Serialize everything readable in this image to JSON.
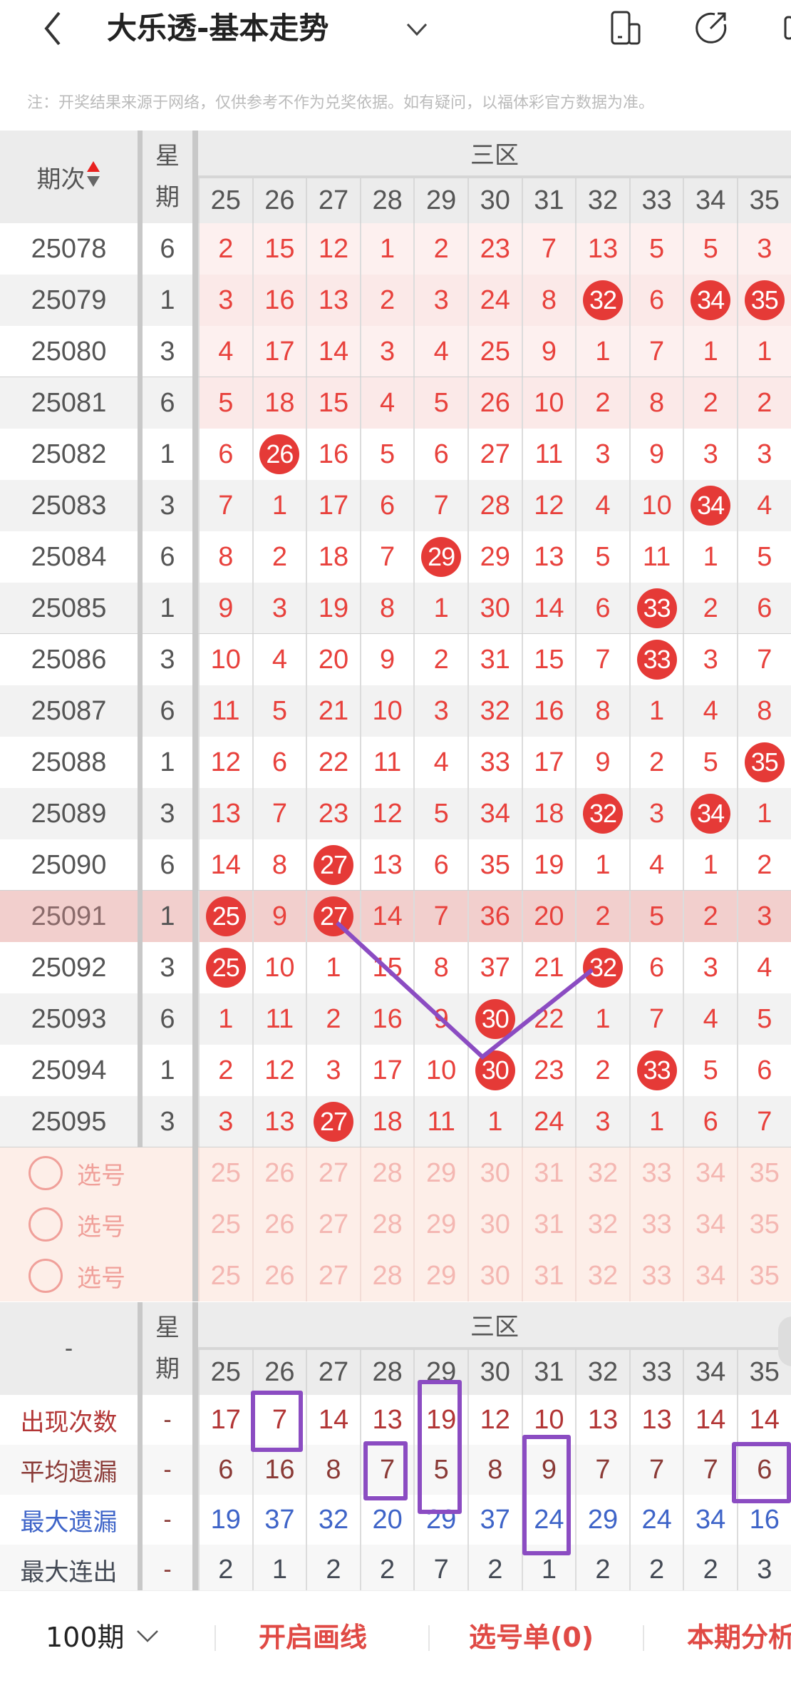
{
  "header": {
    "title": "大乐透-基本走势",
    "back_icon": "chevron-left-icon",
    "dropdown_icon": "chevron-down-icon",
    "icons": [
      "device-icon",
      "share-icon"
    ]
  },
  "notice": "注：开奖结果来源于网络，仅供参考不作为兑奖依据。如有疑问，以福体彩官方数据为准。",
  "table": {
    "issue_header": "期次",
    "weekday_header": "星期",
    "zone_header": "三区",
    "columns": [
      "25",
      "26",
      "27",
      "28",
      "29",
      "30",
      "31",
      "32",
      "33",
      "34",
      "35"
    ],
    "colors": {
      "text": "#e8413c",
      "ball": "#e53a37",
      "issue": "#555555"
    },
    "rows": [
      {
        "issue": "25078",
        "weekday": "6",
        "values": [
          2,
          15,
          12,
          1,
          2,
          23,
          7,
          13,
          5,
          5,
          3
        ],
        "hits": []
      },
      {
        "issue": "25079",
        "weekday": "1",
        "values": [
          3,
          16,
          13,
          2,
          3,
          24,
          8,
          32,
          6,
          34,
          35
        ],
        "hits": [
          7,
          9,
          10
        ]
      },
      {
        "issue": "25080",
        "weekday": "3",
        "values": [
          4,
          17,
          14,
          3,
          4,
          25,
          9,
          1,
          7,
          1,
          1
        ],
        "hits": []
      },
      {
        "issue": "25081",
        "weekday": "6",
        "values": [
          5,
          18,
          15,
          4,
          5,
          26,
          10,
          2,
          8,
          2,
          2
        ],
        "hits": []
      },
      {
        "issue": "25082",
        "weekday": "1",
        "values": [
          6,
          26,
          16,
          5,
          6,
          27,
          11,
          3,
          9,
          3,
          3
        ],
        "hits": [
          1
        ]
      },
      {
        "issue": "25083",
        "weekday": "3",
        "values": [
          7,
          1,
          17,
          6,
          7,
          28,
          12,
          4,
          10,
          34,
          4
        ],
        "hits": [
          9
        ]
      },
      {
        "issue": "25084",
        "weekday": "6",
        "values": [
          8,
          2,
          18,
          7,
          29,
          29,
          13,
          5,
          11,
          1,
          5
        ],
        "hits": [
          4
        ]
      },
      {
        "issue": "25085",
        "weekday": "1",
        "values": [
          9,
          3,
          19,
          8,
          1,
          30,
          14,
          6,
          33,
          2,
          6
        ],
        "hits": [
          8
        ]
      },
      {
        "issue": "25086",
        "weekday": "3",
        "values": [
          10,
          4,
          20,
          9,
          2,
          31,
          15,
          7,
          33,
          3,
          7
        ],
        "hits": [
          8
        ]
      },
      {
        "issue": "25087",
        "weekday": "6",
        "values": [
          11,
          5,
          21,
          10,
          3,
          32,
          16,
          8,
          1,
          4,
          8
        ],
        "hits": []
      },
      {
        "issue": "25088",
        "weekday": "1",
        "values": [
          12,
          6,
          22,
          11,
          4,
          33,
          17,
          9,
          2,
          5,
          35
        ],
        "hits": [
          10
        ]
      },
      {
        "issue": "25089",
        "weekday": "3",
        "values": [
          13,
          7,
          23,
          12,
          5,
          34,
          18,
          32,
          3,
          34,
          1
        ],
        "hits": [
          7,
          9
        ]
      },
      {
        "issue": "25090",
        "weekday": "6",
        "values": [
          14,
          8,
          27,
          13,
          6,
          35,
          19,
          1,
          4,
          1,
          2
        ],
        "hits": [
          2
        ]
      },
      {
        "issue": "25091",
        "weekday": "1",
        "values": [
          25,
          9,
          27,
          14,
          7,
          36,
          20,
          2,
          5,
          2,
          3
        ],
        "hits": [
          0,
          2
        ],
        "highlighted": true
      },
      {
        "issue": "25092",
        "weekday": "3",
        "values": [
          25,
          10,
          1,
          15,
          8,
          37,
          21,
          32,
          6,
          3,
          4
        ],
        "hits": [
          0,
          7
        ]
      },
      {
        "issue": "25093",
        "weekday": "6",
        "values": [
          1,
          11,
          2,
          16,
          9,
          30,
          22,
          1,
          7,
          4,
          5
        ],
        "hits": [
          5
        ]
      },
      {
        "issue": "25094",
        "weekday": "1",
        "values": [
          2,
          12,
          3,
          17,
          10,
          30,
          23,
          2,
          33,
          5,
          6
        ],
        "hits": [
          5,
          8
        ]
      },
      {
        "issue": "25095",
        "weekday": "3",
        "values": [
          3,
          13,
          27,
          18,
          11,
          1,
          24,
          3,
          1,
          6,
          7
        ],
        "hits": [
          2
        ]
      }
    ],
    "select_rows": [
      {
        "label": "选号"
      },
      {
        "label": "选号"
      },
      {
        "label": "选号"
      }
    ]
  },
  "stats": {
    "corner": "-",
    "weekday_header": "星期",
    "zone_header": "三区",
    "rows": [
      {
        "label": "出现次数",
        "weekday": "-",
        "color": "#b23535",
        "values": [
          17,
          7,
          14,
          13,
          19,
          12,
          10,
          13,
          13,
          14,
          14
        ]
      },
      {
        "label": "平均遗漏",
        "weekday": "-",
        "color": "#8a3a36",
        "values": [
          6,
          16,
          8,
          7,
          5,
          8,
          9,
          7,
          7,
          7,
          6
        ]
      },
      {
        "label": "最大遗漏",
        "weekday": "-",
        "color": "#3e64c8",
        "values": [
          19,
          37,
          32,
          20,
          29,
          37,
          24,
          29,
          24,
          34,
          16
        ]
      },
      {
        "label": "最大连出",
        "weekday": "-",
        "color": "#444a55",
        "values": [
          2,
          1,
          2,
          2,
          7,
          2,
          1,
          2,
          2,
          2,
          3
        ]
      }
    ]
  },
  "annotations": {
    "line_color": "#8b4cc2"
  },
  "bottom": {
    "period": "100期",
    "draw_line": "开启画线",
    "selection": "选号单(0)",
    "analysis": "本期分析"
  }
}
